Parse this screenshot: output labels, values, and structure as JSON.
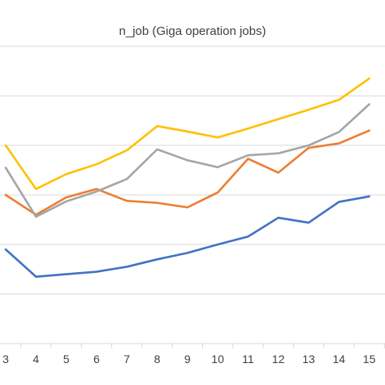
{
  "chart_data": {
    "type": "line",
    "title": "n_job (Giga operation jobs)",
    "xlabel": "",
    "ylabel": "",
    "categories": [
      "3",
      "4",
      "5",
      "6",
      "7",
      "8",
      "9",
      "10",
      "11",
      "12",
      "13",
      "14",
      "15"
    ],
    "ylim": [
      0,
      7
    ],
    "grid": true,
    "series": [
      {
        "color": "#4472C4",
        "values": [
          1.9,
          1.35,
          1.4,
          1.45,
          1.55,
          1.7,
          1.83,
          2.0,
          2.16,
          2.54,
          2.44,
          2.86,
          2.97
        ]
      },
      {
        "color": "#ED7D31",
        "values": [
          3.0,
          2.6,
          2.95,
          3.12,
          2.88,
          2.84,
          2.75,
          3.05,
          3.73,
          3.45,
          3.95,
          4.04,
          4.3
        ]
      },
      {
        "color": "#A5A5A5",
        "values": [
          3.55,
          2.56,
          2.87,
          3.07,
          3.32,
          3.92,
          3.7,
          3.56,
          3.8,
          3.84,
          4.0,
          4.27,
          4.83
        ]
      },
      {
        "color": "#FFC000",
        "values": [
          4.0,
          3.12,
          3.42,
          3.62,
          3.9,
          4.39,
          4.28,
          4.16,
          4.34,
          4.53,
          4.72,
          4.92,
          5.35
        ]
      }
    ],
    "colors": {
      "gridline": "#D9D9D9",
      "text": "#404040"
    }
  }
}
